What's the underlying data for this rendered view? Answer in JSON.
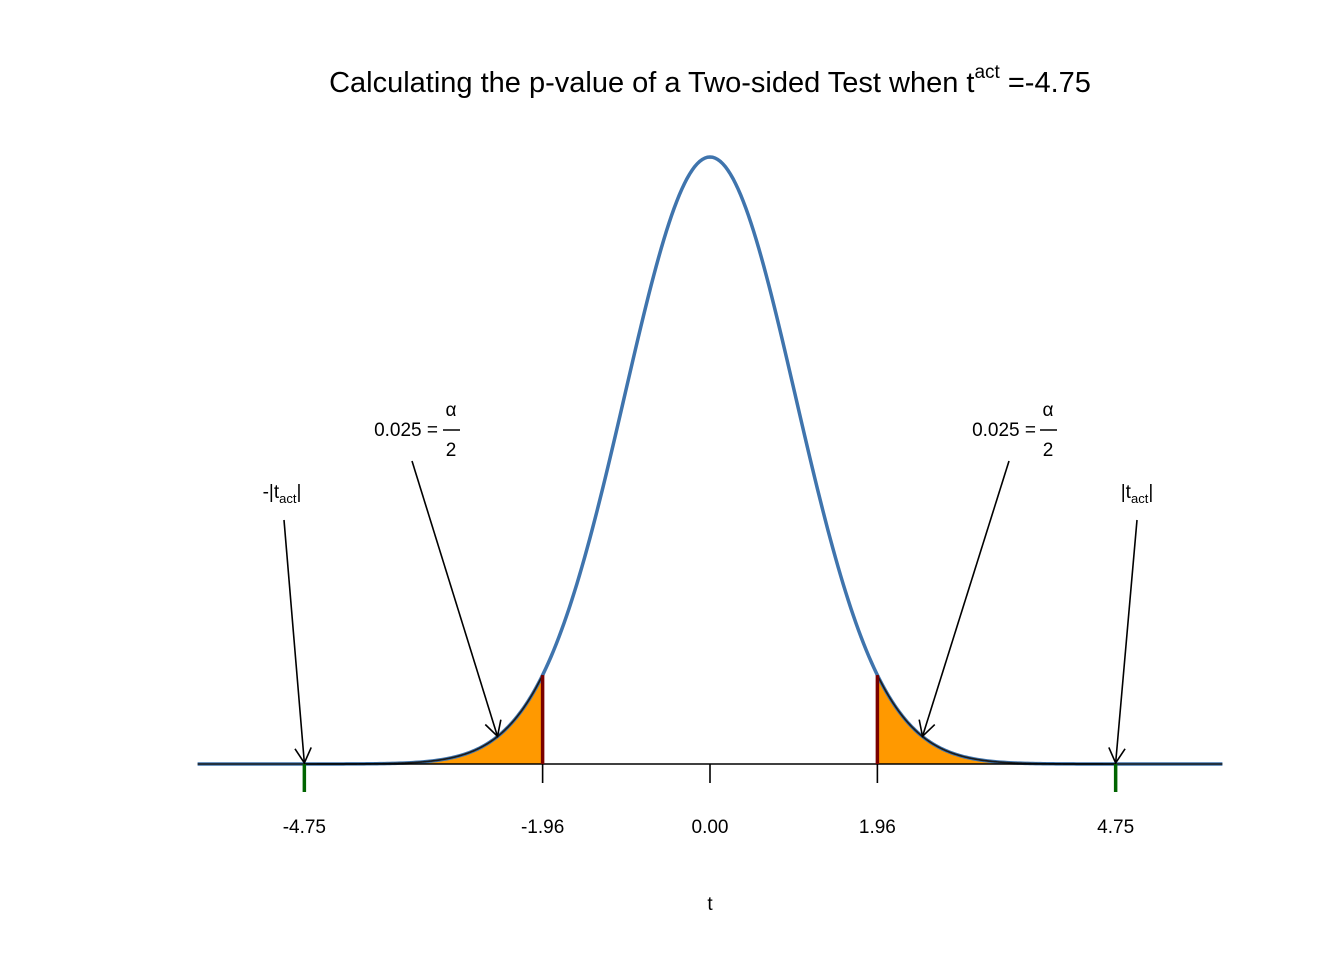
{
  "chart_data": {
    "type": "area",
    "title": {
      "main": "Calculating the p-value of a Two-sided Test when t",
      "superscript": "act",
      "suffix": " =-4.75"
    },
    "xlabel": "t",
    "ylabel": "",
    "xlim": [
      -6.0,
      6.0
    ],
    "ylim": [
      0,
      0.4
    ],
    "series": [
      {
        "kind": "density",
        "distribution": "standard-normal",
        "mean": 0,
        "sd": 1
      }
    ],
    "shaded_regions": [
      {
        "from": -6.0,
        "to": -1.96
      },
      {
        "from": 1.96,
        "to": 6.0
      }
    ],
    "critical_values": [
      -1.96,
      1.96
    ],
    "observed_values": [
      -4.75,
      4.75
    ],
    "xticks": [
      {
        "value": -4.75,
        "label": "-4.75"
      },
      {
        "value": -1.96,
        "label": "-1.96"
      },
      {
        "value": 0.0,
        "label": "0.00"
      },
      {
        "value": 1.96,
        "label": "1.96"
      },
      {
        "value": 4.75,
        "label": "4.75"
      }
    ],
    "annotations": {
      "left_alpha": {
        "value_text": "0.025 =",
        "numerator": "α",
        "denominator": "2",
        "points_to_x": -2.5
      },
      "right_alpha": {
        "value_text": "0.025 =",
        "numerator": "α",
        "denominator": "2",
        "points_to_x": 2.5
      },
      "left_t": {
        "prefix": "-|t",
        "subscript": "act",
        "suffix": "|",
        "points_to_x": -4.75
      },
      "right_t": {
        "prefix": "|t",
        "subscript": "act",
        "suffix": "|",
        "points_to_x": 4.75
      }
    },
    "grid": false,
    "legend": "none",
    "colors": {
      "curve": "#3f74ad",
      "fill": "#ff9900",
      "critical_line": "#7a0000",
      "observed_tick": "#006400",
      "baseline": "#000000"
    }
  }
}
